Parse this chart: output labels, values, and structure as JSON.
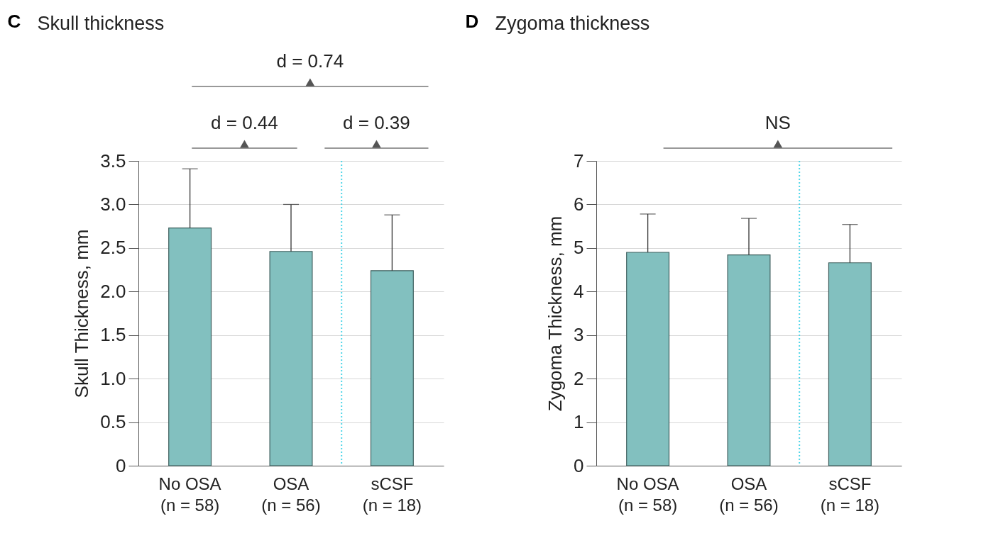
{
  "chart_data": [
    {
      "type": "bar",
      "title": "Skull thickness",
      "ylabel": "Skull Thickness, mm",
      "categories": [
        "No OSA\n(n = 58)",
        "OSA\n(n = 56)",
        "sCSF\n(n = 18)"
      ],
      "values": [
        2.73,
        2.46,
        2.24
      ],
      "color": "#82c0bf",
      "errors": [
        [
          2.73,
          3.41
        ],
        [
          2.46,
          3.0
        ],
        [
          2.24,
          2.88
        ]
      ],
      "ylim": [
        0,
        3.5
      ],
      "yticks": [
        {
          "value": 0,
          "label": "0"
        },
        0.5,
        {
          "value": 1,
          "label": "1.0"
        },
        1.5,
        {
          "value": 2,
          "label": "2.0"
        },
        2.5,
        {
          "value": 3,
          "label": "3.0"
        },
        3.5
      ],
      "grid": "y",
      "ref_lines": [
        {
          "axis": "x",
          "value": "sCSF\n(n = 18)",
          "color": "#4fd6e8",
          "line_style": "dotted"
        }
      ],
      "annotations": [
        "C",
        "d = 0.74",
        "d = 0.44",
        "d = 0.39"
      ]
    },
    {
      "type": "bar",
      "title": "Zygoma thickness",
      "ylabel": "Zygoma Thickness, mm",
      "categories": [
        "No OSA\n(n = 58)",
        "OSA\n(n = 56)",
        "sCSF\n(n = 18)"
      ],
      "values": [
        4.9,
        4.84,
        4.66
      ],
      "color": "#82c0bf",
      "errors": [
        [
          4.9,
          5.78
        ],
        [
          4.84,
          5.68
        ],
        [
          4.66,
          5.54
        ]
      ],
      "ylim": [
        0,
        7
      ],
      "yticks": [
        0,
        1,
        2,
        3,
        4,
        5,
        6,
        7
      ],
      "grid": "y",
      "ref_lines": [
        {
          "axis": "x",
          "value": "sCSF\n(n = 18)",
          "color": "#4fd6e8",
          "line_style": "dotted"
        }
      ],
      "annotations": [
        "D",
        "NS"
      ]
    }
  ]
}
